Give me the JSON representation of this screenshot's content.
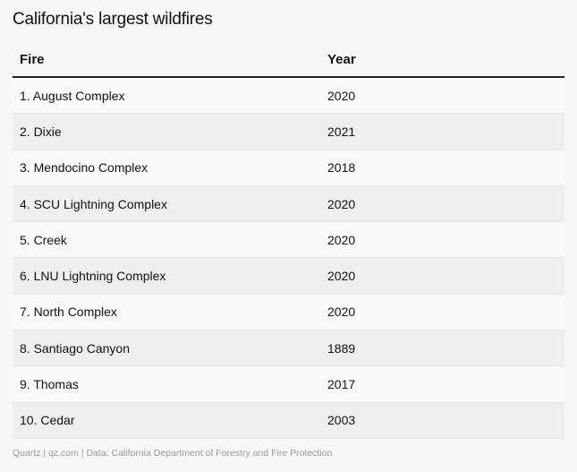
{
  "title": "California's largest wildfires",
  "columns": {
    "fire": "Fire",
    "year": "Year"
  },
  "rows": [
    {
      "fire": "1. August Complex",
      "year": "2020"
    },
    {
      "fire": "2. Dixie",
      "year": "2021"
    },
    {
      "fire": "3. Mendocino Complex",
      "year": "2018"
    },
    {
      "fire": "4. SCU Lightning Complex",
      "year": "2020"
    },
    {
      "fire": "5. Creek",
      "year": "2020"
    },
    {
      "fire": "6. LNU Lightning Complex",
      "year": "2020"
    },
    {
      "fire": "7. North Complex",
      "year": "2020"
    },
    {
      "fire": "8. Santiago Canyon",
      "year": "1889"
    },
    {
      "fire": "9. Thomas",
      "year": "2017"
    },
    {
      "fire": "10. Cedar",
      "year": "2003"
    }
  ],
  "footer": "Quartz | qz.com | Data: California Department of Forestry and Fire Protection",
  "chart_data": {
    "type": "table",
    "title": "California's largest wildfires",
    "columns": [
      "Fire",
      "Year"
    ],
    "rows": [
      [
        "1. August Complex",
        "2020"
      ],
      [
        "2. Dixie",
        "2021"
      ],
      [
        "3. Mendocino Complex",
        "2018"
      ],
      [
        "4. SCU Lightning Complex",
        "2020"
      ],
      [
        "5. Creek",
        "2020"
      ],
      [
        "6. LNU Lightning Complex",
        "2020"
      ],
      [
        "7. North Complex",
        "2020"
      ],
      [
        "8. Santiago Canyon",
        "1889"
      ],
      [
        "9. Thomas",
        "2017"
      ],
      [
        "10. Cedar",
        "2003"
      ]
    ]
  }
}
